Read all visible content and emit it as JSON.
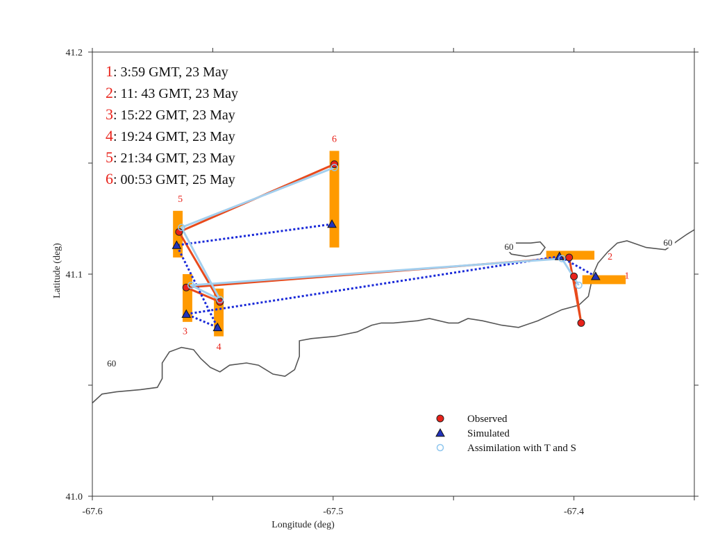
{
  "chart_data": {
    "type": "scatter",
    "title": "",
    "xlabel": "Longitude (deg)",
    "ylabel": "Latitude (deg)",
    "xlim": [
      -67.6,
      -67.35
    ],
    "ylim": [
      41.0,
      41.2
    ],
    "x_ticks": [
      {
        "value": -67.6,
        "label": "-67.6"
      },
      {
        "value": -67.5,
        "label": "-67.5"
      },
      {
        "value": -67.4,
        "label": "-67.4"
      }
    ],
    "y_ticks": [
      {
        "value": 41.0,
        "label": "41.0"
      },
      {
        "value": 41.1,
        "label": "41.1"
      },
      {
        "value": 41.2,
        "label": "41.2"
      }
    ],
    "grid": false,
    "time_legend": [
      {
        "num": "1",
        "text": ": 3:59 GMT, 23 May"
      },
      {
        "num": "2",
        "text": ": 11: 43 GMT, 23 May"
      },
      {
        "num": "3",
        "text": ": 15:22 GMT, 23 May"
      },
      {
        "num": "4",
        "text": ": 19:24 GMT, 23 May"
      },
      {
        "num": "5",
        "text": ": 21:34 GMT, 23 May"
      },
      {
        "num": "6",
        "text": ": 00:53 GMT, 25 May"
      }
    ],
    "series": [
      {
        "name": "Observed",
        "marker": "circle",
        "color": "#e8221a",
        "line_color": "#e84a1c",
        "line_style": "solid",
        "points": [
          {
            "x": -67.4,
            "y": 41.099
          },
          {
            "x": -67.402,
            "y": 41.1075
          },
          {
            "x": -67.561,
            "y": 41.094
          },
          {
            "x": -67.547,
            "y": 41.0875
          },
          {
            "x": -67.564,
            "y": 41.119
          },
          {
            "x": -67.4995,
            "y": 41.1495
          }
        ],
        "extra_points": [
          {
            "x": -67.397,
            "y": 41.078
          }
        ]
      },
      {
        "name": "Simulated",
        "marker": "triangle",
        "color": "#2233bb",
        "line_color": "#1a2ad8",
        "line_style": "dotted",
        "points": [
          {
            "x": -67.391,
            "y": 41.099
          },
          {
            "x": -67.406,
            "y": 41.108
          },
          {
            "x": -67.561,
            "y": 41.082
          },
          {
            "x": -67.548,
            "y": 41.076
          },
          {
            "x": -67.565,
            "y": 41.113
          },
          {
            "x": -67.5005,
            "y": 41.1225
          }
        ]
      },
      {
        "name": "Assimilation with T and S",
        "marker": "open-circle",
        "color": "#8ec6ee",
        "line_color": "#a3cfee",
        "line_style": "solid",
        "points": [
          {
            "x": -67.398,
            "y": 41.095
          },
          {
            "x": -67.405,
            "y": 41.107
          },
          {
            "x": -67.559,
            "y": 41.095
          },
          {
            "x": -67.547,
            "y": 41.0885
          },
          {
            "x": -67.563,
            "y": 41.121
          },
          {
            "x": -67.4995,
            "y": 41.148
          }
        ]
      }
    ],
    "series_paths": [
      {
        "series": 0,
        "order": [
          0,
          "x0",
          1,
          2,
          3,
          4,
          5
        ]
      },
      {
        "series": 1,
        "order": [
          0,
          1,
          2,
          3,
          4,
          5
        ]
      },
      {
        "series": 2,
        "order": [
          0,
          1,
          2,
          3,
          4,
          5
        ]
      }
    ],
    "uncertainty_bars": [
      {
        "label": "1",
        "x_range": [
          -67.3965,
          -67.3785
        ],
        "y_range": [
          41.0955,
          41.0995
        ]
      },
      {
        "label": "2",
        "x_range": [
          -67.4115,
          -67.3915
        ],
        "y_range": [
          41.1065,
          41.1105
        ]
      },
      {
        "label": "3",
        "x_range": [
          -67.5625,
          -67.5585
        ],
        "y_range": [
          41.0785,
          41.1
        ]
      },
      {
        "label": "4",
        "x_range": [
          -67.5495,
          -67.5455
        ],
        "y_range": [
          41.072,
          41.0935
        ]
      },
      {
        "label": "5",
        "x_range": [
          -67.5665,
          -67.5625
        ],
        "y_range": [
          41.1075,
          41.1285
        ]
      },
      {
        "label": "6",
        "x_range": [
          -67.5015,
          -67.4975
        ],
        "y_range": [
          41.112,
          41.1555
        ]
      }
    ],
    "bar_color": "#ff9a00",
    "station_labels": [
      {
        "text": "1",
        "x": -67.378,
        "y": 41.098
      },
      {
        "text": "2",
        "x": -67.385,
        "y": 41.1065
      },
      {
        "text": "3",
        "x": -67.5615,
        "y": 41.073
      },
      {
        "text": "4",
        "x": -67.5475,
        "y": 41.066
      },
      {
        "text": "5",
        "x": -67.5635,
        "y": 41.1325
      },
      {
        "text": "6",
        "x": -67.4995,
        "y": 41.1595
      }
    ],
    "label_color": "#e8221a",
    "contours": [
      {
        "level": "60",
        "points": [
          [
            -67.6,
            41.042
          ],
          [
            -67.596,
            41.046
          ],
          [
            -67.59,
            41.047
          ],
          [
            -67.58,
            41.048
          ],
          [
            -67.573,
            41.049
          ],
          [
            -67.571,
            41.053
          ],
          [
            -67.571,
            41.06
          ],
          [
            -67.568,
            41.065
          ],
          [
            -67.563,
            41.067
          ],
          [
            -67.558,
            41.066
          ],
          [
            -67.555,
            41.062
          ],
          [
            -67.551,
            41.058
          ],
          [
            -67.547,
            41.056
          ],
          [
            -67.543,
            41.059
          ],
          [
            -67.536,
            41.06
          ],
          [
            -67.531,
            41.059
          ],
          [
            -67.525,
            41.055
          ],
          [
            -67.52,
            41.054
          ],
          [
            -67.516,
            41.057
          ],
          [
            -67.514,
            41.063
          ],
          [
            -67.514,
            41.07
          ],
          [
            -67.509,
            41.071
          ],
          [
            -67.499,
            41.072
          ],
          [
            -67.49,
            41.074
          ],
          [
            -67.484,
            41.077
          ],
          [
            -67.48,
            41.078
          ],
          [
            -67.475,
            41.078
          ],
          [
            -67.465,
            41.079
          ],
          [
            -67.46,
            41.08
          ],
          [
            -67.456,
            41.079
          ],
          [
            -67.452,
            41.078
          ],
          [
            -67.448,
            41.078
          ],
          [
            -67.444,
            41.08
          ],
          [
            -67.438,
            41.079
          ],
          [
            -67.43,
            41.077
          ],
          [
            -67.423,
            41.076
          ],
          [
            -67.415,
            41.079
          ],
          [
            -67.405,
            41.084
          ],
          [
            -67.398,
            41.086
          ],
          [
            -67.394,
            41.09
          ],
          [
            -67.392,
            41.1
          ],
          [
            -67.39,
            41.105
          ],
          [
            -67.386,
            41.11
          ],
          [
            -67.382,
            41.114
          ],
          [
            -67.378,
            41.115
          ],
          [
            -67.37,
            41.112
          ],
          [
            -67.362,
            41.111
          ],
          [
            -67.357,
            41.115
          ],
          [
            -67.353,
            41.118
          ],
          [
            -67.35,
            41.12
          ]
        ]
      },
      {
        "level": "60",
        "points": [
          [
            -67.418,
            41.114
          ],
          [
            -67.414,
            41.1145
          ],
          [
            -67.412,
            41.112
          ],
          [
            -67.414,
            41.109
          ],
          [
            -67.42,
            41.108
          ],
          [
            -67.426,
            41.109
          ],
          [
            -67.428,
            41.1115
          ],
          [
            -67.426,
            41.114
          ],
          [
            -67.422,
            41.114
          ],
          [
            -67.418,
            41.114
          ]
        ]
      }
    ],
    "contour_labels": [
      {
        "text": "60",
        "x": -67.592,
        "y": 41.059
      },
      {
        "text": "60",
        "x": -67.427,
        "y": 41.1115
      },
      {
        "text": "60",
        "x": -67.361,
        "y": 41.1135
      }
    ],
    "legend": {
      "location": "lower-right",
      "items": [
        {
          "marker": "circle",
          "label": "Observed"
        },
        {
          "marker": "triangle",
          "label": "Simulated"
        },
        {
          "marker": "open-circle",
          "label": "Assimilation with T and S"
        }
      ]
    }
  }
}
